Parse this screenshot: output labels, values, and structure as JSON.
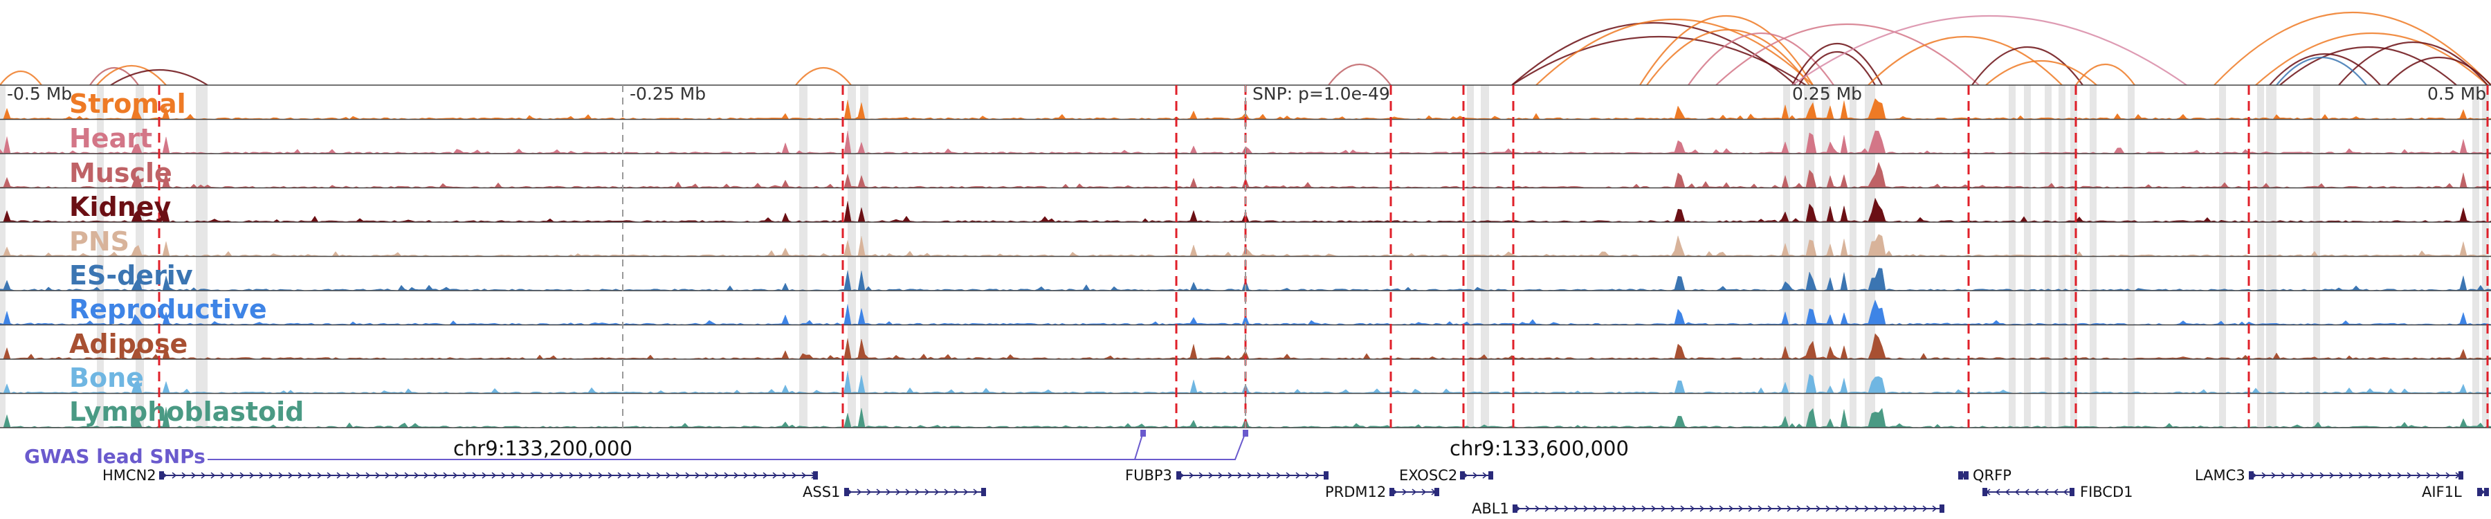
{
  "colors": {
    "Stromal": "#ee7a25",
    "Heart": "#d37687",
    "Muscle": "#bf6266",
    "Kidney": "#6b0f14",
    "PNS": "#d8b39a",
    "ES-deriv": "#3b75b2",
    "Reproductive": "#3e84e6",
    "Adipose": "#a85032",
    "Bone": "#6fb6e2",
    "Lymphoblastoid": "#4a9a84",
    "gwas": "#6a5acd",
    "gene": "#2a2a7a",
    "snp_line": "#e0202a",
    "highlight": "#d9d9d9",
    "arc_pink": "#d88aa6"
  },
  "axis_labels": {
    "left": "-0.5 Mb",
    "left_mid": "-0.25 Mb",
    "snp": "SNP: p=1.0e-49",
    "right_mid": "0.25 Mb",
    "right": "0.5 Mb"
  },
  "tracks": [
    "Stromal",
    "Heart",
    "Muscle",
    "Kidney",
    "PNS",
    "ES-deriv",
    "Reproductive",
    "Adipose",
    "Bone",
    "Lymphoblastoid"
  ],
  "coordinates": {
    "c1": "chr9:133,200,000",
    "c2": "chr9:133,600,000"
  },
  "gwas_label": "GWAS lead SNPs",
  "genes": [
    "HMCN2",
    "ASS1",
    "FUBP3",
    "PRDM12",
    "EXOSC2",
    "ABL1",
    "QRFP",
    "FIBCD1",
    "LAMC3",
    "AIF1L"
  ]
}
